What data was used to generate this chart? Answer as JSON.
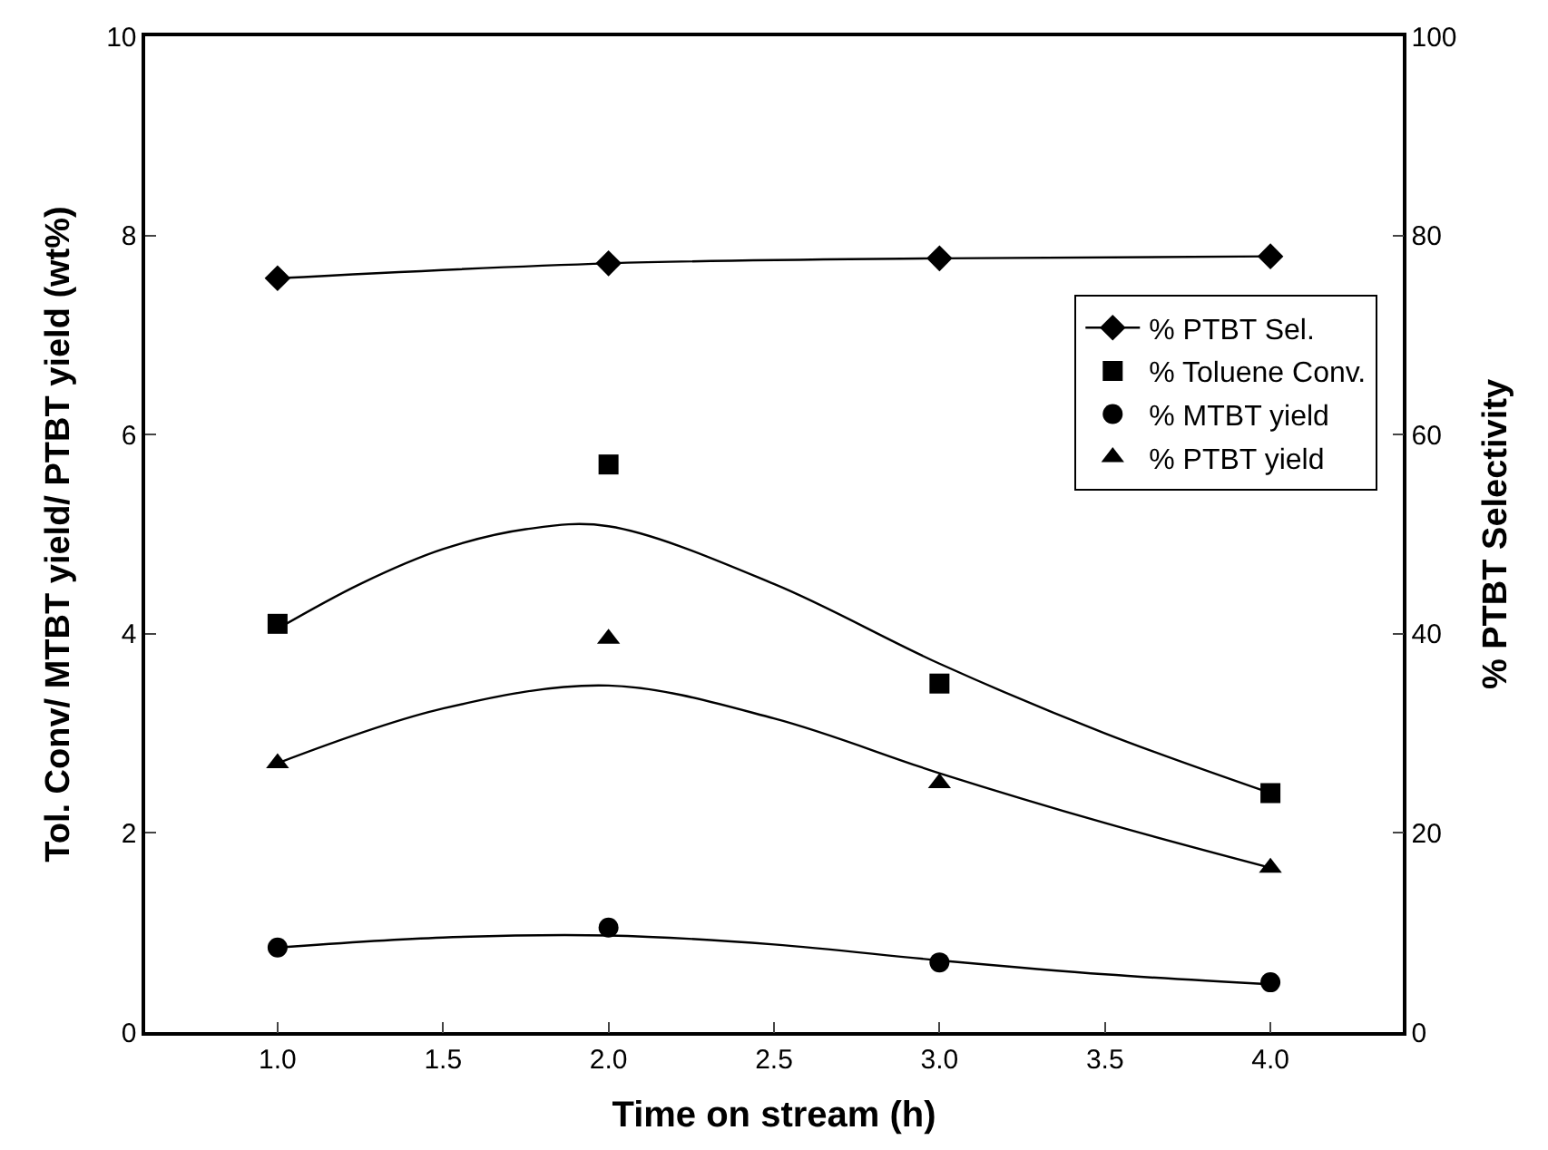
{
  "chart_data": {
    "type": "scatter",
    "xlabel": "Time on stream (h)",
    "ylabel": "Tol. Conv/ MTBT yield/ PTBT yield (wt%)",
    "y2label": "% PTBT Selectivity",
    "x": [
      1.0,
      2.0,
      3.0,
      4.0
    ],
    "xlim": [
      0.6,
      4.4
    ],
    "xticks": [
      {
        "value": 1.0,
        "label": "1.0"
      },
      {
        "value": 1.5,
        "label": "1.5"
      },
      {
        "value": 2.0,
        "label": "2.0"
      },
      {
        "value": 2.5,
        "label": "2.5"
      },
      {
        "value": 3.0,
        "label": "3.0"
      },
      {
        "value": 3.5,
        "label": "3.5"
      },
      {
        "value": 4.0,
        "label": "4.0"
      }
    ],
    "ylim": [
      0,
      10
    ],
    "yticks": [
      0,
      2,
      4,
      6,
      8,
      10
    ],
    "y2lim": [
      0,
      100
    ],
    "y2ticks": [
      0,
      20,
      40,
      60,
      80,
      100
    ],
    "legend": "right",
    "series": [
      {
        "name": "% PTBT Sel.",
        "type": "line",
        "axis": "y2",
        "marker": "diamond",
        "color": "#000000",
        "values": [
          75.7,
          77.2,
          77.7,
          77.9
        ]
      },
      {
        "name": "% Toluene Conv.",
        "marker": "square",
        "color": "#000000",
        "values": [
          4.1,
          5.7,
          3.5,
          2.4
        ]
      },
      {
        "name": "% MTBT yield",
        "marker": "circle",
        "color": "#000000",
        "values": [
          0.85,
          1.05,
          0.7,
          0.5
        ]
      },
      {
        "name": "% PTBT yield",
        "marker": "triangle",
        "color": "#000000",
        "values": [
          2.7,
          3.95,
          2.5,
          1.65
        ]
      },
      {
        "type": "line",
        "marker": "none",
        "color": "#000000",
        "x": [
          1.0,
          1.25,
          1.5,
          1.75,
          2.0,
          2.5,
          3.0,
          3.5,
          4.0
        ],
        "values": [
          4.05,
          4.5,
          4.85,
          5.05,
          5.08,
          4.5,
          3.7,
          3.0,
          2.4
        ]
      },
      {
        "type": "line",
        "marker": "none",
        "color": "#000000",
        "x": [
          1.0,
          1.5,
          2.0,
          2.5,
          3.0,
          3.5,
          4.0
        ],
        "values": [
          0.85,
          0.95,
          0.97,
          0.88,
          0.72,
          0.58,
          0.48
        ]
      },
      {
        "type": "line",
        "marker": "none",
        "color": "#000000",
        "x": [
          1.0,
          1.5,
          2.0,
          2.5,
          3.0,
          3.5,
          4.0
        ],
        "values": [
          2.7,
          3.25,
          3.48,
          3.15,
          2.6,
          2.1,
          1.65
        ]
      }
    ]
  }
}
